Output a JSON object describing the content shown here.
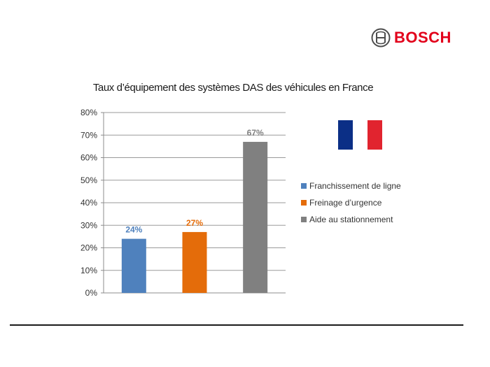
{
  "brand": {
    "name": "BOSCH",
    "color": "#e2001a",
    "icon": "bosch-armature-logo"
  },
  "flag": {
    "icon": "france-flag",
    "colors": [
      "#0b2f86",
      "#ffffff",
      "#e1242f"
    ]
  },
  "chart_data": {
    "type": "bar",
    "title": "Taux d’équipement des systèmes DAS des véhicules en France",
    "categories": [
      "Franchissement de ligne",
      "Freinage d’urgence",
      "Aide au stationnement"
    ],
    "values": [
      24,
      27,
      67
    ],
    "data_labels": [
      "24%",
      "27%",
      "67%"
    ],
    "colors": [
      "#4f81bd",
      "#e46c0a",
      "#808080"
    ],
    "ylim": [
      0,
      80
    ],
    "yticks": [
      0,
      10,
      20,
      30,
      40,
      50,
      60,
      70,
      80
    ],
    "ytick_labels": [
      "0%",
      "10%",
      "20%",
      "30%",
      "40%",
      "50%",
      "60%",
      "70%",
      "80%"
    ],
    "grid": true,
    "legend_position": "right",
    "xlabel": "",
    "ylabel": ""
  }
}
